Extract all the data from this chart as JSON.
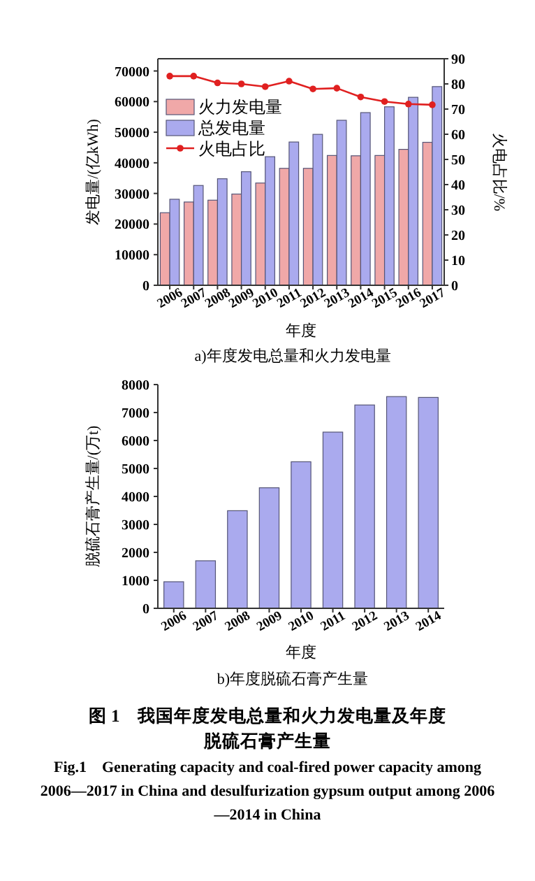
{
  "chart_data": [
    {
      "type": "bar",
      "title": "a)年度发电总量和火力发电量",
      "xlabel": "年度",
      "ylabel": "发电量/(亿kWh)",
      "y2label": "火电占比/%",
      "categories": [
        "2006",
        "2007",
        "2008",
        "2009",
        "2010",
        "2011",
        "2012",
        "2013",
        "2014",
        "2015",
        "2016",
        "2017"
      ],
      "series": [
        {
          "name": "火力发电量",
          "color": "#f0a8a8",
          "values": [
            23700,
            27200,
            27800,
            29800,
            33400,
            38200,
            38200,
            42400,
            42300,
            42400,
            44400,
            46700
          ]
        },
        {
          "name": "总发电量",
          "color": "#aaaaee",
          "values": [
            28100,
            32600,
            34800,
            37100,
            42000,
            46800,
            49300,
            53900,
            56400,
            58300,
            61400,
            64900
          ]
        },
        {
          "name": "火电占比",
          "type": "line",
          "axis": "y2",
          "color": "#e02020",
          "values": [
            83.1,
            83.1,
            80.4,
            80,
            78.9,
            81.1,
            78,
            78.3,
            74.8,
            73,
            72,
            71.7
          ]
        }
      ],
      "ylim": [
        0,
        74000
      ],
      "yticks": [
        0,
        10000,
        20000,
        30000,
        40000,
        50000,
        60000,
        70000
      ],
      "y2lim": [
        0,
        90
      ],
      "y2ticks": [
        0,
        10,
        20,
        30,
        40,
        50,
        60,
        70,
        80,
        90
      ],
      "marker": "circle",
      "legend": "top left"
    },
    {
      "type": "bar",
      "title": "b)年度脱硫石膏产生量",
      "xlabel": "年度",
      "ylabel": "脱硫石膏产生量/(万t)",
      "categories": [
        "2006",
        "2007",
        "2008",
        "2009",
        "2010",
        "2011",
        "2012",
        "2013",
        "2014"
      ],
      "series": [
        {
          "color": "#aaaaee",
          "values": [
            950,
            1700,
            3490,
            4310,
            5240,
            6300,
            7270,
            7570,
            7540
          ]
        }
      ],
      "ylim": [
        0,
        8000
      ],
      "yticks": [
        0,
        1000,
        2000,
        3000,
        4000,
        5000,
        6000,
        7000,
        8000
      ],
      "annotations": [
        "图 1　我国年度发电总量和火力发电量及年度脱硫石膏产生量",
        "Fig.1　Generating capacity and coal-fired power capacity among 2006—2017 in China and desulfurization gypsum output among 2006—2014 in China"
      ]
    }
  ]
}
